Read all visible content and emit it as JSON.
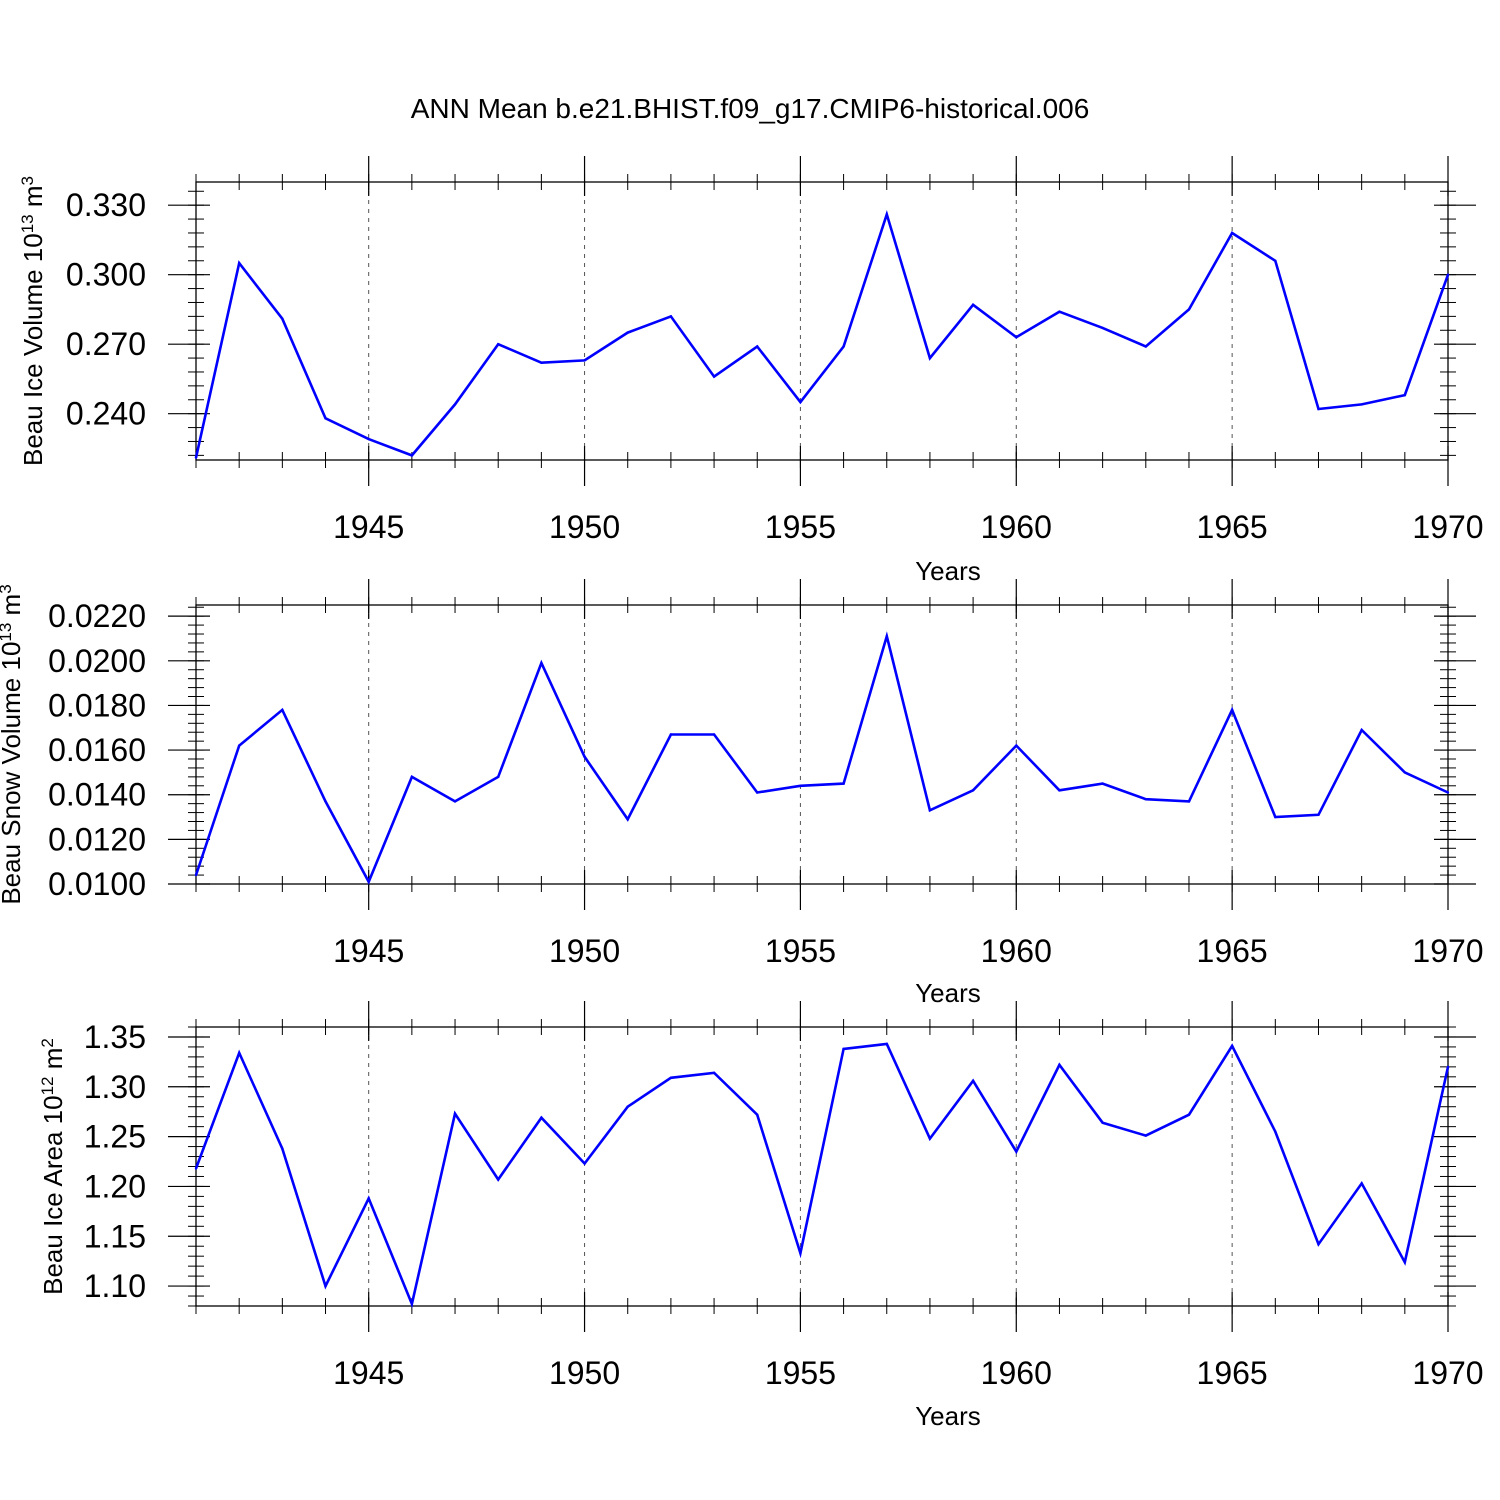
{
  "title": "ANN Mean b.e21.BHIST.f09_g17.CMIP6-historical.006",
  "line_color": "#0000ff",
  "chart_data": [
    {
      "type": "line",
      "id": "ice-volume",
      "title": "",
      "xlabel": "Years",
      "ylabel": {
        "text": "Beau Ice Volume 10",
        "sup": "13",
        "unit": " m",
        "unit_sup": "3"
      },
      "xlim": [
        1941,
        1970
      ],
      "ylim": [
        0.22,
        0.34
      ],
      "xticks": [
        1945,
        1950,
        1955,
        1960,
        1965,
        1970
      ],
      "xtick_labels": [
        "1945",
        "1950",
        "1955",
        "1960",
        "1965",
        "1970"
      ],
      "xminor_step": 1,
      "yticks": [
        0.24,
        0.27,
        0.3,
        0.33
      ],
      "ytick_labels": [
        "0.240",
        "0.270",
        "0.300",
        "0.330"
      ],
      "yminor_step": 0.006,
      "grid_x": [
        1945,
        1950,
        1955,
        1960,
        1965
      ],
      "series": [
        {
          "name": "Beau Ice Volume",
          "x": [
            1941,
            1942,
            1943,
            1944,
            1945,
            1946,
            1947,
            1948,
            1949,
            1950,
            1951,
            1952,
            1953,
            1954,
            1955,
            1956,
            1957,
            1958,
            1959,
            1960,
            1961,
            1962,
            1963,
            1964,
            1965,
            1966,
            1967,
            1968,
            1969,
            1970
          ],
          "values": [
            0.221,
            0.305,
            0.281,
            0.238,
            0.229,
            0.222,
            0.244,
            0.27,
            0.262,
            0.263,
            0.275,
            0.282,
            0.256,
            0.269,
            0.245,
            0.269,
            0.326,
            0.264,
            0.287,
            0.273,
            0.284,
            0.277,
            0.269,
            0.285,
            0.318,
            0.306,
            0.242,
            0.244,
            0.248,
            0.3
          ]
        }
      ]
    },
    {
      "type": "line",
      "id": "snow-volume",
      "title": "",
      "xlabel": "Years",
      "ylabel": {
        "text": "Beau Snow Volume 10",
        "sup": "13",
        "unit": " m",
        "unit_sup": "3"
      },
      "xlim": [
        1941,
        1970
      ],
      "ylim": [
        0.01,
        0.0225
      ],
      "xticks": [
        1945,
        1950,
        1955,
        1960,
        1965,
        1970
      ],
      "xtick_labels": [
        "1945",
        "1950",
        "1955",
        "1960",
        "1965",
        "1970"
      ],
      "xminor_step": 1,
      "yticks": [
        0.01,
        0.012,
        0.014,
        0.016,
        0.018,
        0.02,
        0.022
      ],
      "ytick_labels": [
        "0.0100",
        "0.0120",
        "0.0140",
        "0.0160",
        "0.0180",
        "0.0200",
        "0.0220"
      ],
      "yminor_step": 0.0004,
      "grid_x": [
        1945,
        1950,
        1955,
        1960,
        1965
      ],
      "series": [
        {
          "name": "Beau Snow Volume",
          "x": [
            1941,
            1942,
            1943,
            1944,
            1945,
            1946,
            1947,
            1948,
            1949,
            1950,
            1951,
            1952,
            1953,
            1954,
            1955,
            1956,
            1957,
            1958,
            1959,
            1960,
            1961,
            1962,
            1963,
            1964,
            1965,
            1966,
            1967,
            1968,
            1969,
            1970
          ],
          "values": [
            0.0104,
            0.0162,
            0.0178,
            0.0137,
            0.0101,
            0.0148,
            0.0137,
            0.0148,
            0.0199,
            0.0157,
            0.0129,
            0.0167,
            0.0167,
            0.0141,
            0.0144,
            0.0145,
            0.0211,
            0.0133,
            0.0142,
            0.0162,
            0.0142,
            0.0145,
            0.0138,
            0.0137,
            0.0178,
            0.013,
            0.0131,
            0.0169,
            0.015,
            0.0141
          ]
        }
      ]
    },
    {
      "type": "line",
      "id": "ice-area",
      "title": "",
      "xlabel": "Years",
      "ylabel": {
        "text": "Beau Ice Area 10",
        "sup": "12",
        "unit": " m",
        "unit_sup": "2"
      },
      "xlim": [
        1941,
        1970
      ],
      "ylim": [
        1.08,
        1.36
      ],
      "xticks": [
        1945,
        1950,
        1955,
        1960,
        1965,
        1970
      ],
      "xtick_labels": [
        "1945",
        "1950",
        "1955",
        "1960",
        "1965",
        "1970"
      ],
      "xminor_step": 1,
      "yticks": [
        1.1,
        1.15,
        1.2,
        1.25,
        1.3,
        1.35
      ],
      "ytick_labels": [
        "1.10",
        "1.15",
        "1.20",
        "1.25",
        "1.30",
        "1.35"
      ],
      "yminor_step": 0.01,
      "grid_x": [
        1945,
        1950,
        1955,
        1960,
        1965
      ],
      "series": [
        {
          "name": "Beau Ice Area",
          "x": [
            1941,
            1942,
            1943,
            1944,
            1945,
            1946,
            1947,
            1948,
            1949,
            1950,
            1951,
            1952,
            1953,
            1954,
            1955,
            1956,
            1957,
            1958,
            1959,
            1960,
            1961,
            1962,
            1963,
            1964,
            1965,
            1966,
            1967,
            1968,
            1969,
            1970
          ],
          "values": [
            1.218,
            1.334,
            1.238,
            1.1,
            1.188,
            1.082,
            1.273,
            1.207,
            1.269,
            1.223,
            1.28,
            1.309,
            1.314,
            1.272,
            1.133,
            1.338,
            1.343,
            1.248,
            1.306,
            1.235,
            1.322,
            1.264,
            1.251,
            1.272,
            1.341,
            1.255,
            1.142,
            1.203,
            1.124,
            1.32
          ]
        }
      ]
    }
  ]
}
